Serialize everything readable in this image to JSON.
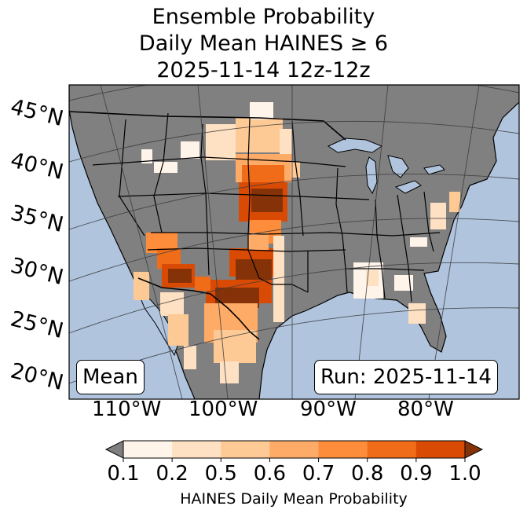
{
  "title": {
    "line1": "Ensemble Probability",
    "line2": "Daily Mean HAINES ≥ 6",
    "line3": "2025-11-14 12z-12z"
  },
  "map": {
    "latitude_labels": [
      "45°N",
      "40°N",
      "35°N",
      "30°N",
      "25°N",
      "20°N"
    ],
    "longitude_labels": [
      "110°W",
      "100°W",
      "90°W",
      "80°W"
    ],
    "mean_label": "Mean",
    "run_label": "Run: 2025-11-14",
    "colors": {
      "ocean": "#b0c4de",
      "land": "#808080",
      "borders": "#000000",
      "grid": "#3a3a3a"
    },
    "probability_regions": [
      {
        "area": "Northern Plains (Montana–Dakotas)",
        "probability": 0.2
      },
      {
        "area": "Nebraska–Kansas plains",
        "probability": 0.9
      },
      {
        "area": "Southwest (Arizona–New Mexico)",
        "probability": 0.8
      },
      {
        "area": "West Texas",
        "probability": 1.0
      },
      {
        "area": "Northern Mexico",
        "probability": 0.6
      },
      {
        "area": "Mississippi–Alabama",
        "probability": 0.2
      },
      {
        "area": "Mid-Atlantic",
        "probability": 0.2
      }
    ]
  },
  "colorbar": {
    "title": "HAINES Daily Mean Probability",
    "ticks": [
      "0.1",
      "0.2",
      "0.5",
      "0.6",
      "0.7",
      "0.8",
      "0.9",
      "1.0"
    ],
    "under_color": "#7f7f7f",
    "colors": [
      "#fff4ea",
      "#fee0c3",
      "#fdc995",
      "#fdab67",
      "#fd8c3b",
      "#f06c19",
      "#d94b05"
    ],
    "over_color": "#863208"
  }
}
